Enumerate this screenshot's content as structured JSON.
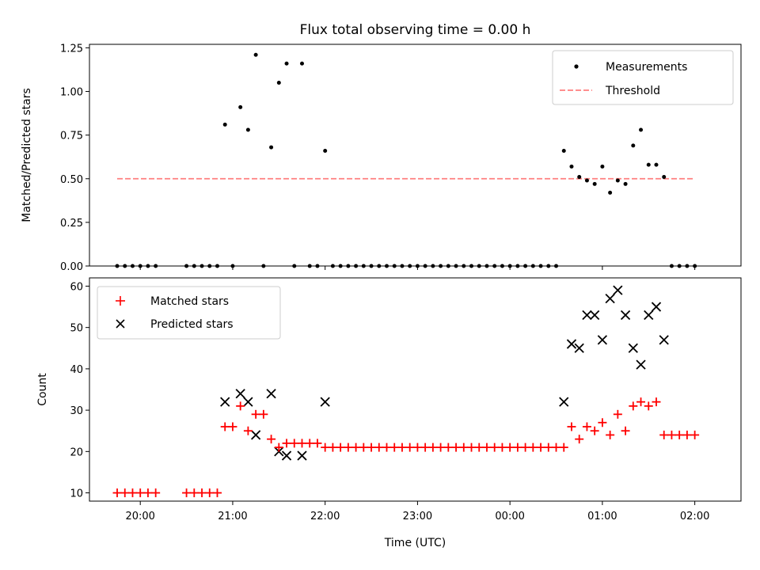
{
  "chart_data": [
    {
      "type": "scatter",
      "title": "Flux total observing time = 0.00 h",
      "xlabel": "",
      "ylabel": "Matched/Predicted stars",
      "ylim": [
        0,
        1.27
      ],
      "yticks": [
        0.0,
        0.25,
        0.5,
        0.75,
        1.0,
        1.25
      ],
      "ytick_labels": [
        "0.00",
        "0.25",
        "0.50",
        "0.75",
        "1.00",
        "1.25"
      ],
      "xlim": [
        "19:27",
        "02:30"
      ],
      "xticks": [
        "20:00",
        "21:00",
        "22:00",
        "23:00",
        "00:00",
        "01:00",
        "02:00"
      ],
      "legend_position": "top-right",
      "series": [
        {
          "name": "Measurements",
          "marker": "dot",
          "color": "#000000",
          "points": [
            [
              "19:45",
              0
            ],
            [
              "19:50",
              0
            ],
            [
              "19:55",
              0
            ],
            [
              "20:00",
              0
            ],
            [
              "20:05",
              0
            ],
            [
              "20:10",
              0
            ],
            [
              "20:30",
              0
            ],
            [
              "20:35",
              0
            ],
            [
              "20:40",
              0
            ],
            [
              "20:45",
              0
            ],
            [
              "20:50",
              0
            ],
            [
              "20:55",
              0.81
            ],
            [
              "21:00",
              0
            ],
            [
              "21:05",
              0.91
            ],
            [
              "21:10",
              0.78
            ],
            [
              "21:15",
              1.21
            ],
            [
              "21:20",
              0
            ],
            [
              "21:25",
              0.68
            ],
            [
              "21:30",
              1.05
            ],
            [
              "21:35",
              1.16
            ],
            [
              "21:40",
              0
            ],
            [
              "21:45",
              1.16
            ],
            [
              "21:50",
              0
            ],
            [
              "21:55",
              0
            ],
            [
              "22:00",
              0.66
            ],
            [
              "22:05",
              0
            ],
            [
              "22:10",
              0
            ],
            [
              "22:15",
              0
            ],
            [
              "22:20",
              0
            ],
            [
              "22:25",
              0
            ],
            [
              "22:30",
              0
            ],
            [
              "22:35",
              0
            ],
            [
              "22:40",
              0
            ],
            [
              "22:45",
              0
            ],
            [
              "22:50",
              0
            ],
            [
              "22:55",
              0
            ],
            [
              "23:00",
              0
            ],
            [
              "23:05",
              0
            ],
            [
              "23:10",
              0
            ],
            [
              "23:15",
              0
            ],
            [
              "23:20",
              0
            ],
            [
              "23:25",
              0
            ],
            [
              "23:30",
              0
            ],
            [
              "23:35",
              0
            ],
            [
              "23:40",
              0
            ],
            [
              "23:45",
              0
            ],
            [
              "23:50",
              0
            ],
            [
              "23:55",
              0
            ],
            [
              "00:00",
              0
            ],
            [
              "00:05",
              0
            ],
            [
              "00:10",
              0
            ],
            [
              "00:15",
              0
            ],
            [
              "00:20",
              0
            ],
            [
              "00:25",
              0
            ],
            [
              "00:30",
              0
            ],
            [
              "00:35",
              0.66
            ],
            [
              "00:40",
              0.57
            ],
            [
              "00:45",
              0.51
            ],
            [
              "00:50",
              0.49
            ],
            [
              "00:55",
              0.47
            ],
            [
              "01:00",
              0.57
            ],
            [
              "01:05",
              0.42
            ],
            [
              "01:10",
              0.49
            ],
            [
              "01:15",
              0.47
            ],
            [
              "01:20",
              0.69
            ],
            [
              "01:25",
              0.78
            ],
            [
              "01:30",
              0.58
            ],
            [
              "01:35",
              0.58
            ],
            [
              "01:40",
              0.51
            ],
            [
              "01:45",
              0
            ],
            [
              "01:50",
              0
            ],
            [
              "01:55",
              0
            ],
            [
              "02:00",
              0
            ]
          ]
        },
        {
          "name": "Threshold",
          "marker": "dashed-line",
          "color": "#ff7f7f",
          "points": [
            [
              "19:45",
              0.5
            ],
            [
              "02:00",
              0.5
            ]
          ]
        }
      ]
    },
    {
      "type": "scatter",
      "title": "",
      "xlabel": "Time (UTC)",
      "ylabel": "Count",
      "ylim": [
        8,
        62
      ],
      "yticks": [
        10,
        20,
        30,
        40,
        50,
        60
      ],
      "ytick_labels": [
        "10",
        "20",
        "30",
        "40",
        "50",
        "60"
      ],
      "xlim": [
        "19:27",
        "02:30"
      ],
      "xticks": [
        "20:00",
        "21:00",
        "22:00",
        "23:00",
        "00:00",
        "01:00",
        "02:00"
      ],
      "xtick_labels": [
        "20:00",
        "21:00",
        "22:00",
        "23:00",
        "00:00",
        "01:00",
        "02:00"
      ],
      "legend_position": "top-left",
      "series": [
        {
          "name": "Matched stars",
          "marker": "plus",
          "color": "#ff0000",
          "points": [
            [
              "19:45",
              10
            ],
            [
              "19:50",
              10
            ],
            [
              "19:55",
              10
            ],
            [
              "20:00",
              10
            ],
            [
              "20:05",
              10
            ],
            [
              "20:10",
              10
            ],
            [
              "20:30",
              10
            ],
            [
              "20:35",
              10
            ],
            [
              "20:40",
              10
            ],
            [
              "20:45",
              10
            ],
            [
              "20:50",
              10
            ],
            [
              "20:55",
              26
            ],
            [
              "21:00",
              26
            ],
            [
              "21:05",
              31
            ],
            [
              "21:10",
              25
            ],
            [
              "21:15",
              29
            ],
            [
              "21:20",
              29
            ],
            [
              "21:25",
              23
            ],
            [
              "21:30",
              21
            ],
            [
              "21:35",
              22
            ],
            [
              "21:40",
              22
            ],
            [
              "21:45",
              22
            ],
            [
              "21:50",
              22
            ],
            [
              "21:55",
              22
            ],
            [
              "22:00",
              21
            ],
            [
              "22:05",
              21
            ],
            [
              "22:10",
              21
            ],
            [
              "22:15",
              21
            ],
            [
              "22:20",
              21
            ],
            [
              "22:25",
              21
            ],
            [
              "22:30",
              21
            ],
            [
              "22:35",
              21
            ],
            [
              "22:40",
              21
            ],
            [
              "22:45",
              21
            ],
            [
              "22:50",
              21
            ],
            [
              "22:55",
              21
            ],
            [
              "23:00",
              21
            ],
            [
              "23:05",
              21
            ],
            [
              "23:10",
              21
            ],
            [
              "23:15",
              21
            ],
            [
              "23:20",
              21
            ],
            [
              "23:25",
              21
            ],
            [
              "23:30",
              21
            ],
            [
              "23:35",
              21
            ],
            [
              "23:40",
              21
            ],
            [
              "23:45",
              21
            ],
            [
              "23:50",
              21
            ],
            [
              "23:55",
              21
            ],
            [
              "00:00",
              21
            ],
            [
              "00:05",
              21
            ],
            [
              "00:10",
              21
            ],
            [
              "00:15",
              21
            ],
            [
              "00:20",
              21
            ],
            [
              "00:25",
              21
            ],
            [
              "00:30",
              21
            ],
            [
              "00:35",
              21
            ],
            [
              "00:40",
              26
            ],
            [
              "00:45",
              23
            ],
            [
              "00:50",
              26
            ],
            [
              "00:55",
              25
            ],
            [
              "01:00",
              27
            ],
            [
              "01:05",
              24
            ],
            [
              "01:10",
              29
            ],
            [
              "01:15",
              25
            ],
            [
              "01:20",
              31
            ],
            [
              "01:25",
              32
            ],
            [
              "01:30",
              31
            ],
            [
              "01:35",
              32
            ],
            [
              "01:40",
              24
            ],
            [
              "01:45",
              24
            ],
            [
              "01:50",
              24
            ],
            [
              "01:55",
              24
            ],
            [
              "02:00",
              24
            ]
          ]
        },
        {
          "name": "Predicted stars",
          "marker": "x",
          "color": "#000000",
          "points": [
            [
              "20:55",
              32
            ],
            [
              "21:05",
              34
            ],
            [
              "21:10",
              32
            ],
            [
              "21:15",
              24
            ],
            [
              "21:25",
              34
            ],
            [
              "21:30",
              20
            ],
            [
              "21:35",
              19
            ],
            [
              "21:45",
              19
            ],
            [
              "22:00",
              32
            ],
            [
              "00:35",
              32
            ],
            [
              "00:40",
              46
            ],
            [
              "00:45",
              45
            ],
            [
              "00:50",
              53
            ],
            [
              "00:55",
              53
            ],
            [
              "01:00",
              47
            ],
            [
              "01:05",
              57
            ],
            [
              "01:10",
              59
            ],
            [
              "01:15",
              53
            ],
            [
              "01:20",
              45
            ],
            [
              "01:25",
              41
            ],
            [
              "01:30",
              53
            ],
            [
              "01:35",
              55
            ],
            [
              "01:40",
              47
            ]
          ]
        }
      ]
    }
  ]
}
